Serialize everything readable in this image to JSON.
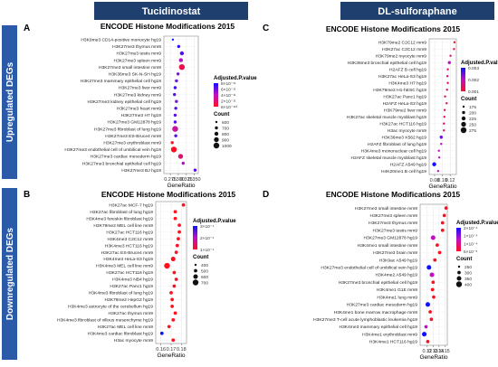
{
  "header": {
    "left": "Tucidinostat",
    "right": "DL-sulforaphane",
    "left_color": "#1f3f6e",
    "right_color": "#1f3f6e",
    "side_color": "#2a5aa8",
    "row_top": "Upregulated DEGs",
    "row_bottom": "Downregulated DEGs"
  },
  "chart_data": [
    {
      "panel": "A",
      "type": "scatter",
      "title": "ENCODE Histone Modifications 2015",
      "xlabel": "GeneRatio",
      "xlim": [
        0.255,
        0.362
      ],
      "xticks": [
        "0.275",
        "0.300",
        "0.325",
        "0.350"
      ],
      "xtick_values": [
        0.275,
        0.3,
        0.325,
        0.35
      ],
      "categories": [
        "H3K9me3 CD14-positive monocyte hg19",
        "H3K27me3 thymus mm9",
        "H3K27me3 testis mm9",
        "H3K27me3 spleen mm9",
        "H3K27me3 small intestine mm9",
        "H3K36me3 SK-N-SH hg19",
        "H3K27me3 mammary epithelial cell hg19",
        "H3K27me3 liver mm9",
        "H3K27me3 kidney mm9",
        "H3K27me3 kidney epithelial cell hg19",
        "H3K27me3 heart mm9",
        "H3K27me3 H7 hg19",
        "H3K27me3 GM12878 hg19",
        "H3K27me3 fibroblast of lung hg19",
        "H3K27me3 ES-Bruce4 mm9",
        "H3K27me3 erythroblast mm9",
        "H3K27me3 endothelial cell of umbilical vein hg19",
        "H3K27me3 cardiac mesoderm hg19",
        "H3K27me3 bronchial epithelial cell hg19",
        "H3K27me3 BJ hg19"
      ],
      "values": [
        0.283,
        0.301,
        0.311,
        0.308,
        0.311,
        0.299,
        0.294,
        0.29,
        0.288,
        0.294,
        0.292,
        0.29,
        0.29,
        0.29,
        0.292,
        0.281,
        0.286,
        0.307,
        0.315,
        0.352
      ],
      "sizes": [
        600,
        700,
        800,
        800,
        1000,
        700,
        700,
        700,
        700,
        700,
        700,
        700,
        700,
        1000,
        700,
        700,
        1000,
        900,
        700,
        700
      ],
      "padj": [
        9.5e-11,
        9e-11,
        8e-11,
        6e-11,
        3e-11,
        7e-11,
        7.5e-11,
        8.5e-11,
        8e-11,
        7e-11,
        8e-11,
        8e-11,
        8e-11,
        5e-11,
        8e-11,
        2e-11,
        2e-11,
        4e-11,
        6e-11,
        8e-11
      ],
      "color_legend_title": "Adjusted.P.value",
      "color_ticks": [
        "8×10⁻¹¹",
        "6×10⁻¹¹",
        "4×10⁻¹¹",
        "2×10⁻¹¹",
        "8×10⁻¹¹³"
      ],
      "size_legend_title": "Count",
      "size_legend_labels": [
        "600",
        "700",
        "800",
        "900",
        "1000"
      ],
      "size_legend_values": [
        600,
        700,
        800,
        900,
        1000
      ]
    },
    {
      "panel": "B",
      "type": "scatter",
      "title": "ENCODE Histone Modifications 2015",
      "xlabel": "GeneRatio",
      "xlim": [
        0.155,
        0.185
      ],
      "xticks": [
        "0.16",
        "0.17",
        "0.18"
      ],
      "xtick_values": [
        0.16,
        0.17,
        0.18
      ],
      "categories": [
        "H3K27ac MCF-7 hg19",
        "H3K27ac fibroblast of lung hg19",
        "H3K4me3 foreskin fibroblast hg19",
        "H3K79me2 MEL cell line mm9",
        "H3K27ac HCT116 hg19",
        "H3K4me3 C2C12 mm9",
        "H3K4me3 HCT116 hg19",
        "H3K27ac ES-Bruce4 mm9",
        "H3K4me3 HeLa-S3 hg19",
        "H3K4me3 MEL cell line mm9",
        "H3K27ac HCT116 hg19",
        "H3K4me3 NB4 hg19",
        "H3K27ac Panc1 hg19",
        "H3K4me3 fibroblast of lung hg19",
        "H3K79me2 HepG2 hg19",
        "H3K4me3 astrocyte of the cerebellum hg19",
        "H3K27ac thymus mm9",
        "H3K4me3 fibroblast of villous mesenchyme hg19",
        "H3K27ac MEL cell line mm9",
        "H3K4me3 cardiac fibroblast hg19",
        "H3ac myocyte mm9"
      ],
      "values": [
        0.182,
        0.174,
        0.174,
        0.178,
        0.178,
        0.177,
        0.176,
        0.175,
        0.172,
        0.166,
        0.173,
        0.175,
        0.173,
        0.17,
        0.171,
        0.171,
        0.174,
        0.172,
        0.168,
        0.161,
        0.172
      ],
      "sizes": [
        500,
        500,
        500,
        500,
        500,
        500,
        500,
        500,
        600,
        700,
        500,
        500,
        500,
        500,
        500,
        500,
        500,
        500,
        500,
        500,
        500
      ],
      "padj": [
        0.0001,
        0.0001,
        0.0001,
        0.0001,
        0.0001,
        0.0001,
        0.0001,
        0.0001,
        0.0001,
        0.0001,
        0.0001,
        0.0001,
        0.0001,
        0.0001,
        0.0001,
        0.0001,
        0.0001,
        0.0001,
        0.0001,
        0.0003,
        0.0001
      ],
      "color_legend_title": "Adjusted.P.value",
      "color_ticks": [
        "3×10⁻⁴",
        "2×10⁻⁴",
        "1×10⁻⁴"
      ],
      "size_legend_title": "Count",
      "size_legend_labels": [
        "400",
        "500",
        "600",
        "700"
      ],
      "size_legend_values": [
        400,
        500,
        600,
        700
      ]
    },
    {
      "panel": "C",
      "type": "scatter",
      "title": "ENCODE Histone Modifications 2015",
      "xlabel": "GeneRatio",
      "xlim": [
        0.066,
        0.136
      ],
      "xticks": [
        "0.08",
        "0.10",
        "0.12"
      ],
      "xtick_values": [
        0.08,
        0.1,
        0.12
      ],
      "categories": [
        "H3K79me2 C2C12 mm9",
        "H3K27ac C2C12 mm9",
        "H3K79me2 myocyte mm9",
        "H3K36me3 bronchial epithelial cell hg19",
        "H2AFZ B cell hg19",
        "H3K27ac HeLa-S3 hg19",
        "H3K4me3 H7 hg19",
        "H3K79me2 H1-hESC hg19",
        "H3K27ac Panc1 hg19",
        "H2AFZ HeLa-S3 hg19",
        "H3K79me2 liver mm9",
        "H3K27ac skeletal muscle myoblast hg19",
        "H3K27ac HCT116 hg19",
        "H3ac myocyte mm9",
        "H3K36me3 K562 hg19",
        "H2AFZ fibroblast of lung hg19",
        "H3K4me3 mononuclear cell hg19",
        "H2AFZ skeletal muscle myoblast hg19",
        "H2AFZ A549 hg19",
        "H4K20me1 B cell hg19"
      ],
      "values": [
        0.131,
        0.13,
        0.121,
        0.118,
        0.114,
        0.113,
        0.114,
        0.112,
        0.107,
        0.111,
        0.106,
        0.105,
        0.104,
        0.104,
        0.097,
        0.097,
        0.091,
        0.092,
        0.079,
        0.089
      ],
      "sizes": [
        175,
        175,
        175,
        200,
        175,
        175,
        175,
        175,
        175,
        175,
        175,
        175,
        175,
        175,
        200,
        175,
        175,
        175,
        225,
        175
      ],
      "padj": [
        0.001,
        0.0012,
        0.0015,
        0.002,
        0.0015,
        0.0015,
        0.0015,
        0.0015,
        0.0015,
        0.0015,
        0.0015,
        0.0015,
        0.0015,
        0.0015,
        0.0025,
        0.002,
        0.002,
        0.002,
        0.003,
        0.002
      ],
      "color_legend_title": "Adjusted.P.value",
      "color_ticks": [
        "0.003",
        "0.002",
        "0.001"
      ],
      "size_legend_title": "Count",
      "size_legend_labels": [
        "175",
        "200",
        "225",
        "250",
        "275"
      ],
      "size_legend_values": [
        175,
        200,
        225,
        250,
        275
      ]
    },
    {
      "panel": "D",
      "type": "scatter",
      "title": "ENCODE Histone Modifications 2015",
      "xlabel": "GeneRatio",
      "xlim": [
        0.108,
        0.154
      ],
      "xticks": [
        "0.12",
        "0.13",
        "0.14",
        "0.15"
      ],
      "xtick_values": [
        0.12,
        0.13,
        0.14,
        0.15
      ],
      "categories": [
        "H3K27me3 small intestine mm9",
        "H3K27me3 spleen mm9",
        "H3K27me3 thymus mm9",
        "H3K27me3 testis mm9",
        "H3K27me3 GM12878 hg19",
        "H3K4me1 small intestine mm9",
        "H3K27me3 brain mm9",
        "H3K9ac A549 hg19",
        "H3K27me3 endothelial cell of umbilical vein hg19",
        "H3K4me2 A549 hg19",
        "H3K27me3 bronchial epithelial cell hg19",
        "H3K4me1 G1E mm9",
        "H3K4me1 lung mm9",
        "H3K27me3 cardiac mesoderm hg19",
        "H3K4me1 bone marrow macrophage mm9",
        "H3K27me3 T-cell acute lymphoblastic leukemia hg19",
        "H3K4me3 mammary epithelial cell hg19",
        "H3K4me1 erythroblast mm9",
        "H3K4me1 HCT116 hg19"
      ],
      "values": [
        0.152,
        0.149,
        0.146,
        0.146,
        0.13,
        0.137,
        0.141,
        0.133,
        0.123,
        0.128,
        0.13,
        0.129,
        0.131,
        0.121,
        0.125,
        0.127,
        0.118,
        0.115,
        0.121
      ],
      "sizes": [
        300,
        300,
        300,
        300,
        350,
        300,
        300,
        300,
        350,
        350,
        300,
        300,
        300,
        350,
        300,
        300,
        300,
        350,
        300
      ],
      "padj": [
        0.0001,
        0.0001,
        0.0001,
        0.0001,
        0.0002,
        0.0001,
        0.0001,
        0.0001,
        0.0003,
        0.0002,
        0.0001,
        0.0001,
        0.0001,
        0.0003,
        0.0001,
        0.0001,
        0.0002,
        0.0003,
        0.0001
      ],
      "color_legend_title": "Adjusted.P.value",
      "color_ticks": [
        "2×10⁻⁴",
        "1×10⁻⁴",
        "1×10⁻⁴",
        "5×10⁻⁵"
      ],
      "size_legend_title": "Count",
      "size_legend_labels": [
        "250",
        "300",
        "350",
        "400"
      ],
      "size_legend_values": [
        250,
        300,
        350,
        400
      ]
    }
  ]
}
